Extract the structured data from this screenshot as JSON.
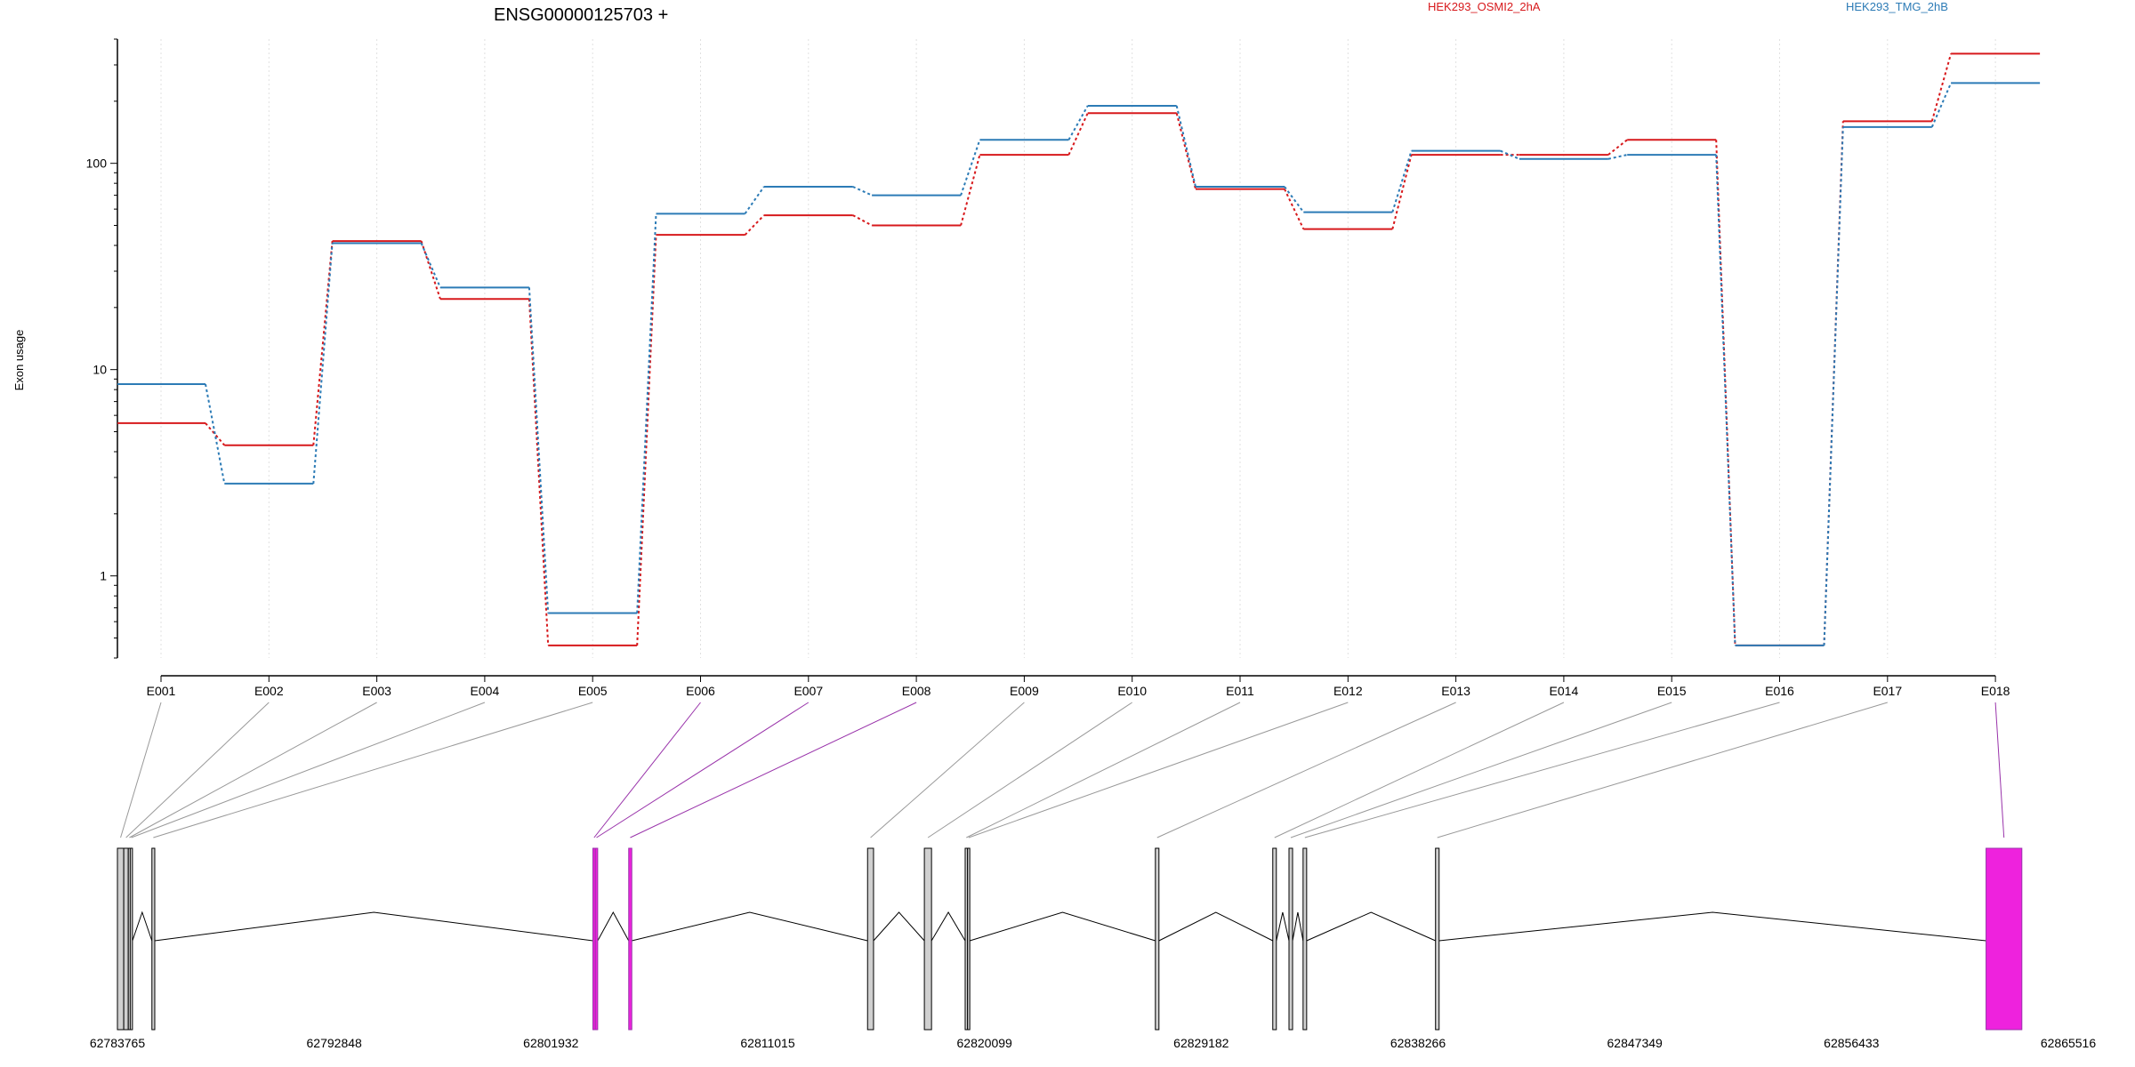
{
  "title": "ENSG00000125703 +",
  "legend": [
    {
      "name": "HEK293_OSMI2_2hA",
      "color": "#d7191c"
    },
    {
      "name": "HEK293_TMG_2hB",
      "color": "#2c7bb6"
    }
  ],
  "colors": {
    "highlight": "#ee22dd",
    "highlight_line": "#9933aa",
    "exon_fill": "#d0d0d0",
    "connector": "#999999",
    "axis": "#000000",
    "grid": "#e0e0e0"
  },
  "chart_data": {
    "type": "line",
    "ylabel": "Exon usage",
    "xlabel": "",
    "yscale": "log",
    "ylim": [
      0.4,
      400
    ],
    "yticks": [
      1,
      10,
      100
    ],
    "ytick_labels": [
      "1",
      "10",
      "100"
    ],
    "categories": [
      "E001",
      "E002",
      "E003",
      "E004",
      "E005",
      "E006",
      "E007",
      "E008",
      "E009",
      "E010",
      "E011",
      "E012",
      "E013",
      "E014",
      "E015",
      "E016",
      "E017",
      "E018"
    ],
    "series": [
      {
        "name": "HEK293_OSMI2_2hA",
        "color": "#d7191c",
        "values": [
          5.5,
          4.3,
          42,
          22,
          0.46,
          45,
          56,
          50,
          110,
          175,
          75,
          48,
          110,
          110,
          130,
          0.46,
          160,
          340
        ]
      },
      {
        "name": "HEK293_TMG_2hB",
        "color": "#2c7bb6",
        "values": [
          8.5,
          2.8,
          41,
          25,
          0.66,
          57,
          77,
          70,
          130,
          190,
          77,
          58,
          115,
          105,
          110,
          0.46,
          150,
          245
        ]
      }
    ],
    "highlighted_exons": [
      "E006",
      "E007",
      "E008",
      "E018"
    ],
    "grid": "vertical-dotted"
  },
  "gene_model": {
    "coord_min": 62783765,
    "coord_max": 62865516,
    "axis_labels": [
      "62783765",
      "62792848",
      "62801932",
      "62811015",
      "62820099",
      "62829182",
      "62838266",
      "62847349",
      "62856433",
      "62865516"
    ],
    "exons": [
      {
        "id": "E001",
        "start": 62783765,
        "end": 62784030,
        "highlight": false
      },
      {
        "id": "E002",
        "start": 62784030,
        "end": 62784220,
        "highlight": false
      },
      {
        "id": "E003",
        "start": 62784220,
        "end": 62784300,
        "highlight": false
      },
      {
        "id": "E004",
        "start": 62784300,
        "end": 62784395,
        "highlight": false
      },
      {
        "id": "E005",
        "start": 62785210,
        "end": 62785330,
        "highlight": false
      },
      {
        "id": "E006",
        "start": 62803690,
        "end": 62803790,
        "highlight": true
      },
      {
        "id": "E007",
        "start": 62803790,
        "end": 62803890,
        "highlight": true
      },
      {
        "id": "E008",
        "start": 62805190,
        "end": 62805320,
        "highlight": true
      },
      {
        "id": "E009",
        "start": 62815200,
        "end": 62815450,
        "highlight": false
      },
      {
        "id": "E010",
        "start": 62817580,
        "end": 62817880,
        "highlight": false
      },
      {
        "id": "E011",
        "start": 62819290,
        "end": 62819390,
        "highlight": false
      },
      {
        "id": "E012",
        "start": 62819390,
        "end": 62819480,
        "highlight": false
      },
      {
        "id": "E013",
        "start": 62827260,
        "end": 62827410,
        "highlight": false
      },
      {
        "id": "E014",
        "start": 62832180,
        "end": 62832330,
        "highlight": false
      },
      {
        "id": "E015",
        "start": 62832860,
        "end": 62833010,
        "highlight": false
      },
      {
        "id": "E016",
        "start": 62833450,
        "end": 62833600,
        "highlight": false
      },
      {
        "id": "E017",
        "start": 62839000,
        "end": 62839150,
        "highlight": false
      },
      {
        "id": "E018",
        "start": 62862070,
        "end": 62863570,
        "highlight": true
      }
    ]
  }
}
